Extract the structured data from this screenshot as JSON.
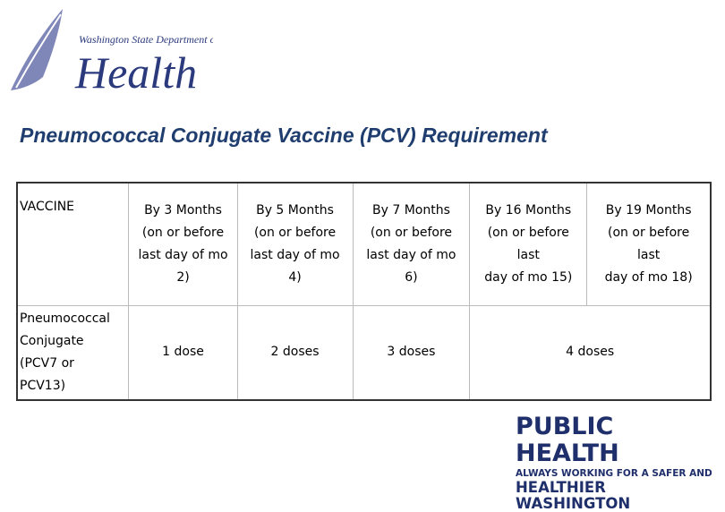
{
  "header": {
    "agency": "Washington State Department of",
    "name": "Health"
  },
  "title": "Pneumococcal Conjugate Vaccine (PCV) Requirement",
  "table": {
    "header": [
      [
        "VACCINE"
      ],
      [
        "By 3 Months",
        "(on or before",
        "last day of mo",
        "2)"
      ],
      [
        "By 5 Months",
        "(on or before",
        "last day of mo",
        "4)"
      ],
      [
        "By 7 Months",
        "(on or before",
        "last day of mo",
        "6)"
      ],
      [
        "By 16 Months",
        "(on or before",
        "last",
        "day of mo 15)"
      ],
      [
        "By 19 Months",
        "(on or before",
        "last",
        "day of mo 18)"
      ]
    ],
    "rows": [
      [
        [
          "Pneumococcal",
          "Conjugate",
          "(PCV7 or",
          "PCV13)"
        ],
        [
          "1 dose"
        ],
        [
          "2 doses"
        ],
        [
          "3 doses"
        ],
        [
          "4 doses"
        ]
      ]
    ]
  },
  "footer": {
    "line1": "PUBLIC HEALTH",
    "line2": "ALWAYS WORKING FOR A SAFER AND",
    "line3": "HEALTHIER WASHINGTON"
  }
}
